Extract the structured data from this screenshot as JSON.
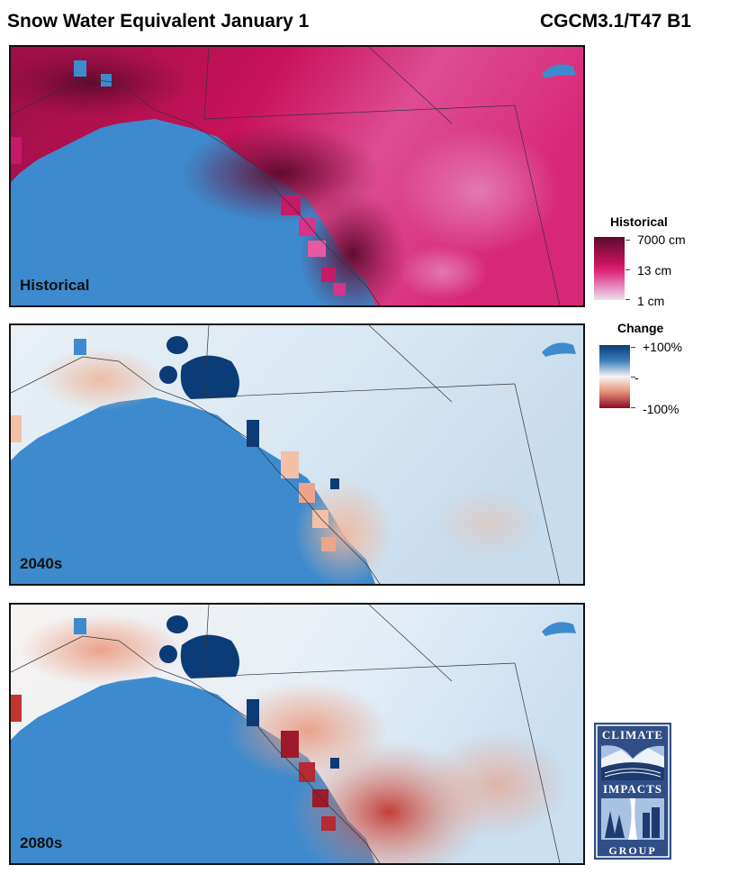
{
  "header": {
    "title": "Snow Water Equivalent January 1",
    "model": "CGCM3.1/T47 B1"
  },
  "panels": [
    {
      "label": "Historical"
    },
    {
      "label": "2040s"
    },
    {
      "label": "2080s"
    }
  ],
  "legend_historical": {
    "title": "Historical",
    "ticks": [
      "7000 cm",
      "13 cm",
      "1 cm"
    ]
  },
  "legend_change": {
    "title": "Change",
    "ticks": [
      "+100%",
      "-",
      "-100%"
    ]
  },
  "logo": {
    "text_top": "CLIMATE",
    "text_mid": "IMPACTS",
    "text_bottom": "GROUP"
  },
  "colors": {
    "ocean": "#3d8bce",
    "historical_high": "#5e0a2e",
    "historical_mid": "#e0287a",
    "historical_low": "#e8d2e8",
    "change_pos": "#0b3c78",
    "change_neutral": "#f4f4f4",
    "change_neg": "#8a0d24"
  }
}
